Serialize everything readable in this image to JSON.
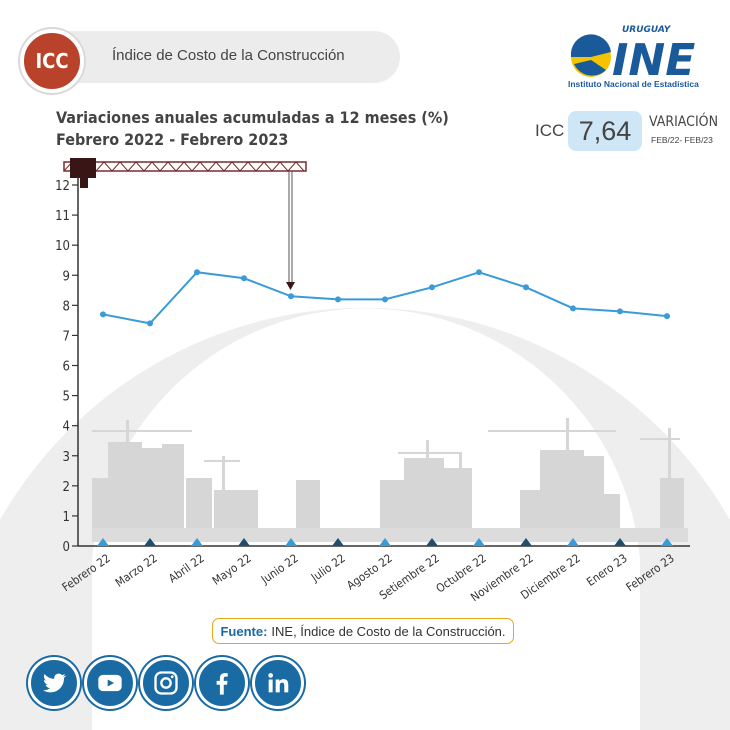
{
  "header": {
    "badge": "ICC",
    "title": "Índice de Costo de la Construcción"
  },
  "logo": {
    "country": "URUGUAY",
    "name": "INE",
    "subtitle": "Instituto Nacional de Estadística"
  },
  "kpi": {
    "label": "ICC",
    "value": "7,64",
    "variation_label": "VARIACIÓN",
    "period": "FEB/22- FEB/23"
  },
  "chart_title_line1": "Variaciones anuales acumuladas a 12 meses (%)",
  "chart_title_line2": "Febrero 2022 - Febrero 2023",
  "chart_data": {
    "type": "line",
    "title": "Variaciones anuales acumuladas a 12 meses (%)",
    "subtitle": "Febrero 2022 - Febrero 2023",
    "categories": [
      "Febrero 22",
      "Marzo 22",
      "Abril 22",
      "Mayo 22",
      "Junio 22",
      "Julio 22",
      "Agosto 22",
      "Setiembre 22",
      "Octubre 22",
      "Noviembre 22",
      "Diciembre 22",
      "Enero 23",
      "Febrero 23"
    ],
    "series": [
      {
        "values": [
          7.7,
          7.4,
          9.1,
          8.9,
          8.3,
          8.2,
          8.2,
          8.6,
          9.1,
          8.6,
          7.9,
          7.8,
          7.64
        ]
      }
    ],
    "y_ticks": [
      "0",
      "1",
      "2",
      "3",
      "4",
      "5",
      "6",
      "7",
      "8",
      "9",
      "10",
      "11",
      "12"
    ],
    "ylim": [
      0,
      12
    ],
    "grid": false,
    "line_color": "#3a9bd9",
    "marker_colors": [
      "#3a9bd9",
      "#1f4e6e"
    ]
  },
  "source": {
    "label": "Fuente:",
    "text": "INE, Índice de Costo de la Construcción."
  },
  "social": [
    {
      "icon": "twitter-icon"
    },
    {
      "icon": "youtube-icon"
    },
    {
      "icon": "instagram-icon"
    },
    {
      "icon": "facebook-icon"
    },
    {
      "icon": "linkedin-icon"
    }
  ],
  "colors": {
    "accent_blue": "#1a6aa3",
    "badge_red": "#b8432a",
    "kpi_bg": "#cfe6f7",
    "source_border": "#e8a817"
  }
}
